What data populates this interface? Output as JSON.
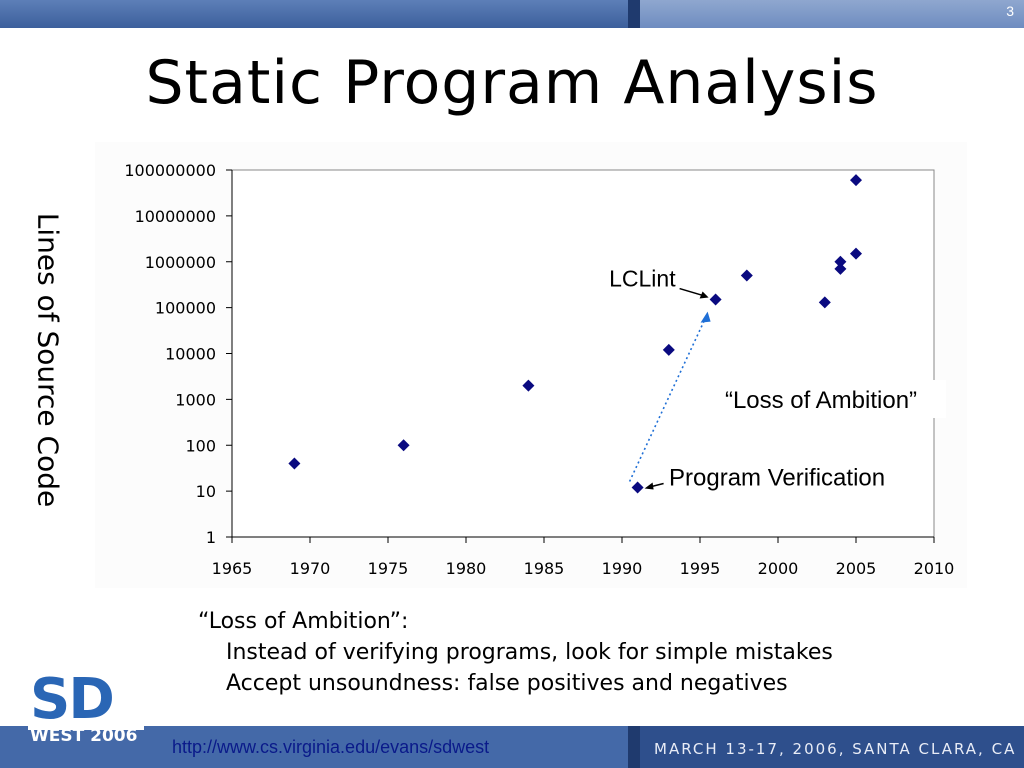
{
  "slide": {
    "number": "3",
    "title": "Static Program Analysis"
  },
  "body": {
    "heading": "“Loss of Ambition”:",
    "lines": [
      "Instead of verifying programs, look for simple mistakes",
      "Accept unsoundness: false positives and negatives"
    ]
  },
  "footer": {
    "url": "http://www.cs.virginia.edu/evans/sdwest",
    "event": "MARCH 13-17, 2006, SANTA CLARA, CA",
    "logo_main": "SD",
    "logo_sub": "WEST 2006"
  },
  "colors": {
    "marker": "#0a0a80",
    "arrow_dotted": "#1f6fd6",
    "grid": "#000000"
  },
  "chart_data": {
    "type": "scatter",
    "title": "",
    "xlabel": "",
    "ylabel": "Lines of Source Code",
    "xlim": [
      1965,
      2010
    ],
    "ylim": [
      1,
      100000000
    ],
    "yscale": "log",
    "x_ticks": [
      "1965",
      "1970",
      "1975",
      "1980",
      "1985",
      "1990",
      "1995",
      "2000",
      "2005",
      "2010"
    ],
    "y_ticks": [
      "1",
      "10",
      "100",
      "1000",
      "10000",
      "100000",
      "1000000",
      "10000000",
      "100000000"
    ],
    "grid": "horizontal",
    "legend": "none",
    "points": [
      {
        "x": 1969,
        "y": 40
      },
      {
        "x": 1976,
        "y": 100
      },
      {
        "x": 1984,
        "y": 2000
      },
      {
        "x": 1991,
        "y": 12
      },
      {
        "x": 1993,
        "y": 12000
      },
      {
        "x": 1996,
        "y": 150000
      },
      {
        "x": 1998,
        "y": 500000
      },
      {
        "x": 2003,
        "y": 130000
      },
      {
        "x": 2004,
        "y": 700000
      },
      {
        "x": 2004,
        "y": 1000000
      },
      {
        "x": 2005,
        "y": 1500000
      },
      {
        "x": 2005,
        "y": 60000000
      }
    ],
    "annotations": [
      {
        "text": "LCLint",
        "x": 1996,
        "y": 150000
      },
      {
        "text": "“Loss of Ambition”",
        "from": {
          "x": 1991,
          "y": 12
        },
        "to": {
          "x": 1996,
          "y": 100000
        }
      },
      {
        "text": "Program Verification",
        "x": 1991,
        "y": 12
      }
    ]
  }
}
